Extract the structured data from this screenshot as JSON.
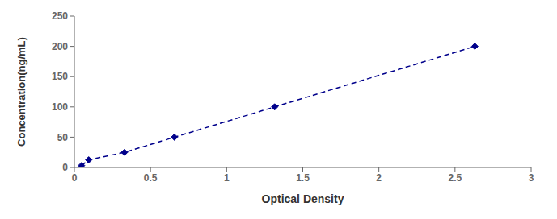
{
  "chart_data": {
    "type": "line",
    "x": [
      0.047,
      0.094,
      0.329,
      0.657,
      1.315,
      2.63
    ],
    "values": [
      3.125,
      12.5,
      25,
      50,
      100,
      200
    ],
    "xlabel": "Optical Density",
    "ylabel": "Concentration(ng/mL)",
    "xlim": [
      0,
      3
    ],
    "ylim": [
      0,
      250
    ],
    "xticks": [
      0,
      0.5,
      1,
      1.5,
      2,
      2.5,
      3
    ],
    "yticks": [
      0,
      50,
      100,
      150,
      200,
      250
    ],
    "color": "#00008B",
    "marker": "diamond",
    "line_style": "dashed",
    "grid": false
  }
}
